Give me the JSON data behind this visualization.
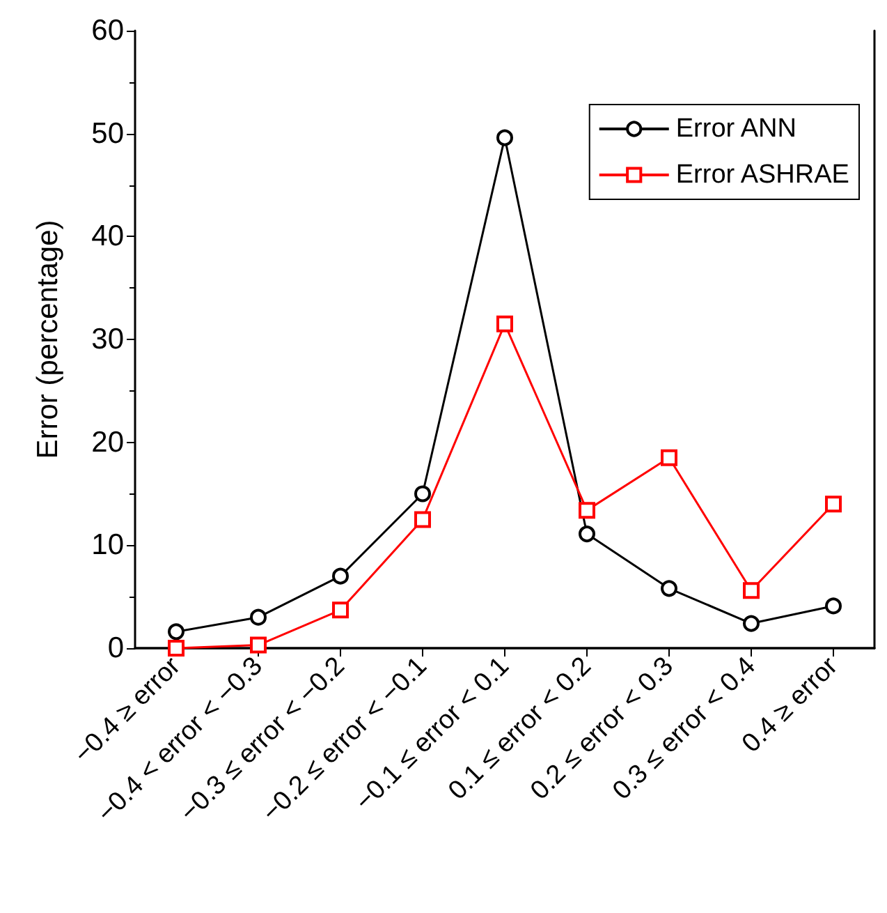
{
  "chart_data": {
    "type": "line",
    "ylabel": "Error (percentage)",
    "categories": [
      "−0.4 ≥ error",
      "−0.4 < error < −0.3",
      "−0.3 ≤ error < −0.2",
      "−0.2 ≤ error < −0.1",
      "−0.1 ≤ error < 0.1",
      "0.1 ≤ error < 0.2",
      "0.2 ≤ error < 0.3",
      "0.3 ≤ error < 0.4",
      "0.4 ≥ error"
    ],
    "series": [
      {
        "name": "Error ANN",
        "color": "#000000",
        "marker": "circle",
        "values": [
          1.6,
          3.0,
          7.0,
          15.0,
          49.6,
          11.1,
          5.8,
          2.4,
          4.1
        ]
      },
      {
        "name": "Error ASHRAE",
        "color": "#ff0000",
        "marker": "square",
        "values": [
          0,
          0.3,
          3.7,
          12.5,
          31.5,
          13.4,
          18.5,
          5.6,
          14.0
        ]
      }
    ],
    "ylim": [
      0,
      60
    ],
    "yticks": [
      0,
      10,
      20,
      30,
      40,
      50,
      60
    ],
    "grid": false,
    "legend": "top right",
    "line_style": "solid"
  }
}
